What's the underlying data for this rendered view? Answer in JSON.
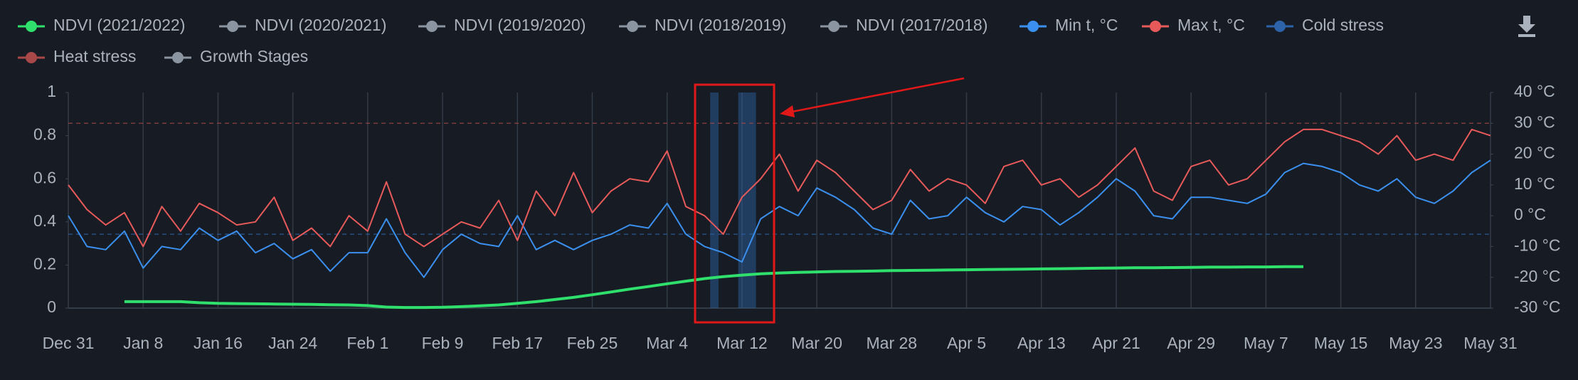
{
  "chart_data": {
    "type": "line",
    "xlim": [
      0,
      152
    ],
    "xticks": [
      {
        "value": 0,
        "label": "Dec 31"
      },
      {
        "value": 8,
        "label": "Jan 8"
      },
      {
        "value": 16,
        "label": "Jan 16"
      },
      {
        "value": 24,
        "label": "Jan 24"
      },
      {
        "value": 32,
        "label": "Feb 1"
      },
      {
        "value": 40,
        "label": "Feb 9"
      },
      {
        "value": 48,
        "label": "Feb 17"
      },
      {
        "value": 56,
        "label": "Feb 25"
      },
      {
        "value": 64,
        "label": "Mar 4"
      },
      {
        "value": 72,
        "label": "Mar 12"
      },
      {
        "value": 80,
        "label": "Mar 20"
      },
      {
        "value": 88,
        "label": "Mar 28"
      },
      {
        "value": 96,
        "label": "Apr 5"
      },
      {
        "value": 104,
        "label": "Apr 13"
      },
      {
        "value": 112,
        "label": "Apr 21"
      },
      {
        "value": 120,
        "label": "Apr 29"
      },
      {
        "value": 128,
        "label": "May 7"
      },
      {
        "value": 136,
        "label": "May 15"
      },
      {
        "value": 144,
        "label": "May 23"
      },
      {
        "value": 152,
        "label": "May 31"
      }
    ],
    "ylim": [
      0,
      1
    ],
    "yticks": [
      0,
      0.2,
      0.4,
      0.6,
      0.8,
      1
    ],
    "y2lim": [
      -30,
      40
    ],
    "y2ticks": [
      {
        "value": -30,
        "label": "-30 °C"
      },
      {
        "value": -20,
        "label": "-20 °C"
      },
      {
        "value": -10,
        "label": "-10 °C"
      },
      {
        "value": 0,
        "label": "0 °C"
      },
      {
        "value": 10,
        "label": "10 °C"
      },
      {
        "value": 20,
        "label": "20 °C"
      },
      {
        "value": 30,
        "label": "30 °C"
      },
      {
        "value": 40,
        "label": "40 °C"
      }
    ],
    "grid": "x",
    "x": [
      0,
      2,
      4,
      6,
      8,
      10,
      12,
      14,
      16,
      18,
      20,
      22,
      24,
      26,
      28,
      30,
      32,
      34,
      36,
      38,
      40,
      42,
      44,
      46,
      48,
      50,
      52,
      54,
      56,
      58,
      60,
      62,
      64,
      66,
      68,
      70,
      72,
      74,
      76,
      78,
      80,
      82,
      84,
      86,
      88,
      90,
      92,
      94,
      96,
      98,
      100,
      102,
      104,
      106,
      108,
      110,
      112,
      114,
      116,
      118,
      120,
      122,
      124,
      126,
      128,
      130,
      132,
      134,
      136,
      138,
      140,
      142,
      144,
      146,
      148,
      150,
      152
    ],
    "series": [
      {
        "name": "NDVI (2021/2022)",
        "color": "#2fe06c",
        "visible": true,
        "values": [
          null,
          null,
          null,
          0.03,
          0.03,
          0.03,
          0.03,
          0.025,
          0.022,
          0.021,
          0.02,
          0.019,
          0.018,
          0.017,
          0.016,
          0.015,
          0.012,
          0.005,
          0.003,
          0.003,
          0.004,
          0.007,
          0.011,
          0.015,
          0.022,
          0.03,
          0.04,
          0.05,
          0.062,
          0.075,
          0.088,
          0.1,
          0.113,
          0.125,
          0.137,
          0.146,
          0.153,
          0.159,
          0.163,
          0.166,
          0.168,
          0.17,
          0.171,
          0.172,
          0.174,
          0.175,
          0.176,
          0.177,
          0.178,
          0.179,
          0.18,
          0.181,
          0.182,
          0.183,
          0.184,
          0.185,
          0.186,
          0.187,
          0.187,
          0.188,
          0.189,
          0.19,
          0.19,
          0.191,
          0.191,
          0.192,
          0.192,
          null,
          null,
          null,
          null,
          null,
          null,
          null,
          null,
          null,
          null
        ]
      },
      {
        "name": "NDVI (2020/2021)",
        "color": "#8b95a1",
        "visible": false
      },
      {
        "name": "NDVI (2019/2020)",
        "color": "#8b95a1",
        "visible": false
      },
      {
        "name": "NDVI (2018/2019)",
        "color": "#8b95a1",
        "visible": false
      },
      {
        "name": "NDVI (2017/2018)",
        "color": "#8b95a1",
        "visible": false
      },
      {
        "name": "Min t, °C",
        "color": "#3b8fee",
        "visible": true,
        "axis": "y2",
        "values": [
          0,
          -10,
          -11,
          -5,
          -17,
          -10,
          -11,
          -4,
          -8,
          -5,
          -12,
          -9,
          -14,
          -11,
          -18,
          -12,
          -12,
          -1,
          -12,
          -20,
          -11,
          -6,
          -9,
          -10,
          0,
          -11,
          -8,
          -11,
          -8,
          -6,
          -3,
          -4,
          4,
          -6,
          -10,
          -12,
          -15,
          -1,
          3,
          0,
          9,
          6,
          2,
          -4,
          -6,
          5,
          -1,
          0,
          6,
          1,
          -2,
          3,
          2,
          -3,
          1,
          6,
          12,
          8,
          0,
          -1,
          6,
          6,
          5,
          4,
          7,
          14,
          17,
          16,
          14,
          10,
          8,
          12,
          6,
          4,
          8,
          14,
          18
        ]
      },
      {
        "name": "Max t, °C",
        "color": "#e85a5a",
        "visible": true,
        "axis": "y2",
        "values": [
          10,
          2,
          -3,
          1,
          -10,
          3,
          -5,
          4,
          1,
          -3,
          -2,
          6,
          -8,
          -4,
          -10,
          0,
          -5,
          11,
          -6,
          -10,
          -6,
          -2,
          -4,
          5,
          -8,
          8,
          0,
          14,
          1,
          8,
          12,
          11,
          21,
          3,
          0,
          -6,
          6,
          12,
          20,
          8,
          18,
          14,
          8,
          2,
          5,
          15,
          8,
          12,
          10,
          4,
          16,
          18,
          10,
          12,
          6,
          10,
          16,
          22,
          8,
          5,
          16,
          18,
          10,
          12,
          18,
          24,
          28,
          28,
          26,
          24,
          20,
          26,
          18,
          20,
          18,
          28,
          26
        ]
      },
      {
        "name": "Cold stress",
        "color": "#2d63a8",
        "visible": true,
        "axis": "y2",
        "threshold": -6,
        "periods": [
          [
            68.6,
            69.5
          ],
          [
            71.6,
            73.5
          ]
        ]
      },
      {
        "name": "Heat stress",
        "color": "#a84848",
        "visible": true,
        "axis": "y2",
        "threshold": 30
      },
      {
        "name": "Growth Stages",
        "color": "#8b95a1",
        "visible": false
      }
    ]
  }
}
